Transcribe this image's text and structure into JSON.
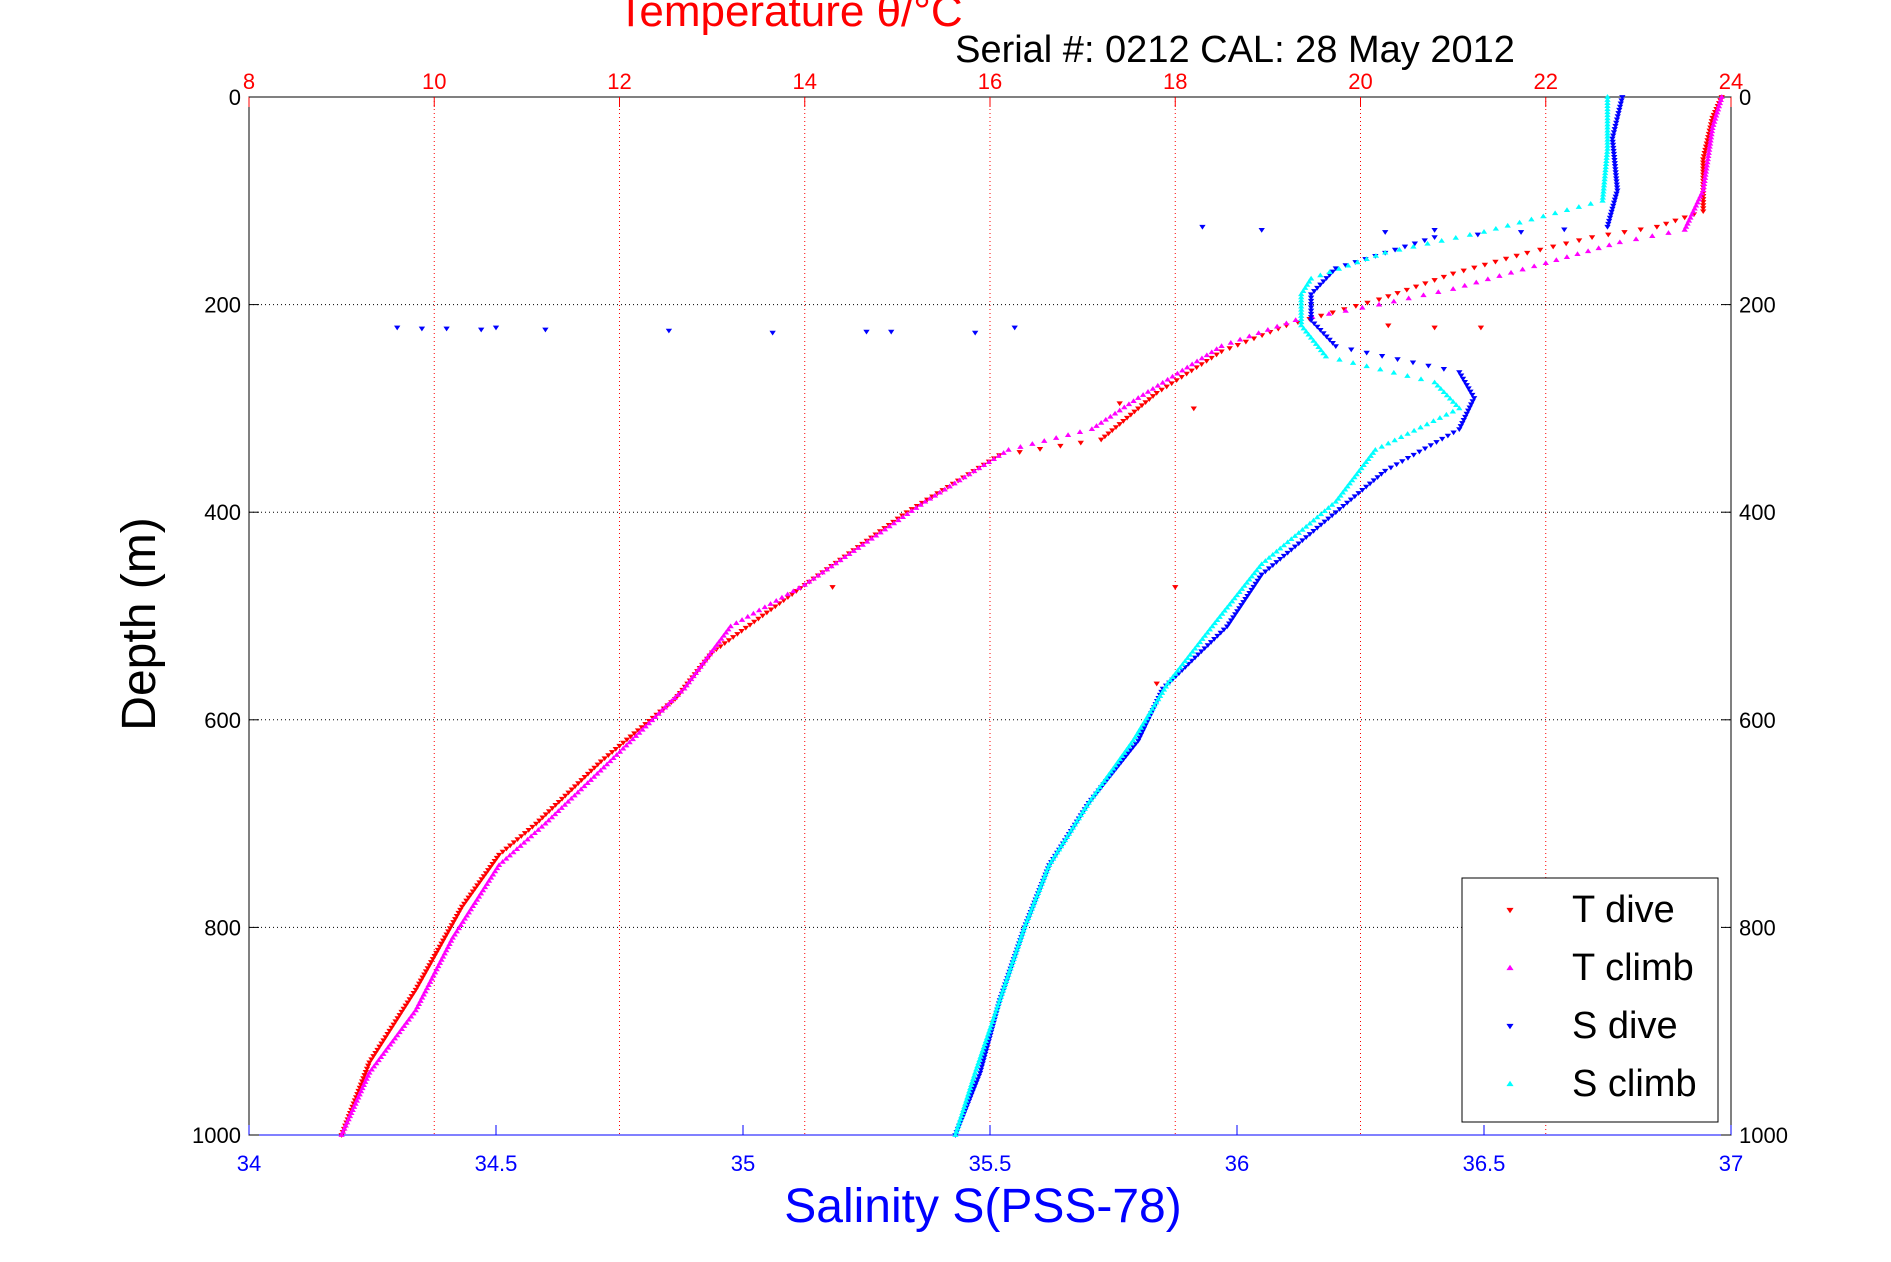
{
  "chart_data": {
    "type": "scatter",
    "title_temperature": "Temperature θ/°C",
    "title_serial": "Serial #: 0212  CAL: 28 May 2012",
    "xlabel": "Salinity S(PSS-78)",
    "ylabel": "Depth (m)",
    "temperature_axis": {
      "range": [
        8,
        24
      ],
      "ticks": [
        "8",
        "10",
        "12",
        "14",
        "16",
        "18",
        "20",
        "22",
        "24"
      ],
      "color": "#ff0000",
      "position": "top"
    },
    "salinity_axis": {
      "range": [
        34,
        37
      ],
      "ticks": [
        "34",
        "34.5",
        "35",
        "35.5",
        "36",
        "36.5",
        "37"
      ],
      "color": "#0000ff",
      "position": "bottom"
    },
    "depth_axis": {
      "range": [
        0,
        1000
      ],
      "reversed": true,
      "ticks": [
        "0",
        "200",
        "400",
        "600",
        "800",
        "1000"
      ]
    },
    "grid": true,
    "legend_position": "bottom-right",
    "series": [
      {
        "name": "T dive",
        "axis": "temperature",
        "color": "#ff0000",
        "marker": "triangle-down",
        "points": [
          [
            23.9,
            0
          ],
          [
            23.8,
            20
          ],
          [
            23.7,
            60
          ],
          [
            23.7,
            110
          ],
          [
            23.2,
            125
          ],
          [
            22.5,
            135
          ],
          [
            21.8,
            150
          ],
          [
            21.0,
            170
          ],
          [
            20.2,
            195
          ],
          [
            19.2,
            220
          ],
          [
            18.5,
            245
          ],
          [
            17.8,
            285
          ],
          [
            17.2,
            330
          ],
          [
            16.1,
            345
          ],
          [
            15.1,
            400
          ],
          [
            14.0,
            470
          ],
          [
            13.0,
            535
          ],
          [
            12.6,
            580
          ],
          [
            11.8,
            640
          ],
          [
            11.1,
            700
          ],
          [
            10.7,
            730
          ],
          [
            10.3,
            780
          ],
          [
            9.8,
            860
          ],
          [
            9.3,
            930
          ],
          [
            9.0,
            1000
          ]
        ]
      },
      {
        "name": "T climb",
        "axis": "temperature",
        "color": "#ff00ff",
        "marker": "triangle-up",
        "points": [
          [
            23.9,
            0
          ],
          [
            23.8,
            30
          ],
          [
            23.7,
            90
          ],
          [
            23.5,
            128
          ],
          [
            22.8,
            140
          ],
          [
            22.0,
            160
          ],
          [
            21.0,
            185
          ],
          [
            20.2,
            200
          ],
          [
            19.3,
            215
          ],
          [
            18.5,
            240
          ],
          [
            17.6,
            290
          ],
          [
            17.1,
            320
          ],
          [
            16.2,
            340
          ],
          [
            15.3,
            390
          ],
          [
            14.0,
            470
          ],
          [
            13.2,
            510
          ],
          [
            12.7,
            570
          ],
          [
            11.9,
            640
          ],
          [
            11.2,
            700
          ],
          [
            10.7,
            740
          ],
          [
            10.2,
            810
          ],
          [
            9.8,
            880
          ],
          [
            9.3,
            940
          ],
          [
            9.0,
            1000
          ]
        ]
      },
      {
        "name": "S dive",
        "axis": "salinity",
        "color": "#0000ff",
        "marker": "triangle-down",
        "points": [
          [
            36.78,
            0
          ],
          [
            36.76,
            40
          ],
          [
            36.77,
            90
          ],
          [
            36.75,
            125
          ],
          [
            36.4,
            135
          ],
          [
            36.2,
            165
          ],
          [
            36.15,
            190
          ],
          [
            36.15,
            215
          ],
          [
            36.2,
            240
          ],
          [
            36.45,
            265
          ],
          [
            36.48,
            290
          ],
          [
            36.45,
            320
          ],
          [
            36.3,
            360
          ],
          [
            36.2,
            400
          ],
          [
            36.05,
            460
          ],
          [
            35.98,
            510
          ],
          [
            35.85,
            570
          ],
          [
            35.8,
            620
          ],
          [
            35.7,
            680
          ],
          [
            35.62,
            740
          ],
          [
            35.57,
            800
          ],
          [
            35.52,
            870
          ],
          [
            35.48,
            940
          ],
          [
            35.43,
            1000
          ]
        ]
      },
      {
        "name": "S climb",
        "axis": "salinity",
        "color": "#00ffff",
        "marker": "triangle-up",
        "points": [
          [
            36.75,
            0
          ],
          [
            36.75,
            50
          ],
          [
            36.74,
            100
          ],
          [
            36.5,
            130
          ],
          [
            36.3,
            150
          ],
          [
            36.15,
            175
          ],
          [
            36.13,
            190
          ],
          [
            36.13,
            220
          ],
          [
            36.18,
            250
          ],
          [
            36.4,
            275
          ],
          [
            36.45,
            300
          ],
          [
            36.28,
            340
          ],
          [
            36.2,
            390
          ],
          [
            36.05,
            450
          ],
          [
            35.95,
            510
          ],
          [
            35.86,
            565
          ],
          [
            35.79,
            620
          ],
          [
            35.7,
            680
          ],
          [
            35.62,
            740
          ],
          [
            35.57,
            800
          ],
          [
            35.52,
            870
          ],
          [
            35.47,
            940
          ],
          [
            35.43,
            1000
          ]
        ]
      }
    ],
    "scattered_outliers": [
      {
        "series": "S dive",
        "points": [
          [
            34.3,
            222
          ],
          [
            34.35,
            223
          ],
          [
            34.4,
            223
          ],
          [
            34.47,
            224
          ],
          [
            34.5,
            222
          ],
          [
            34.6,
            224
          ],
          [
            34.85,
            225
          ],
          [
            35.06,
            227
          ],
          [
            35.25,
            226
          ],
          [
            35.3,
            226
          ],
          [
            35.47,
            227
          ],
          [
            35.55,
            222
          ],
          [
            35.93,
            125
          ],
          [
            36.05,
            128
          ],
          [
            36.3,
            130
          ],
          [
            36.4,
            128
          ]
        ]
      },
      {
        "series": "T dive",
        "points": [
          [
            17.4,
            295
          ],
          [
            18.2,
            300
          ],
          [
            20.3,
            220
          ],
          [
            20.8,
            222
          ],
          [
            21.3,
            222
          ],
          [
            14.3,
            472
          ],
          [
            18.0,
            472
          ],
          [
            17.8,
            565
          ]
        ]
      }
    ]
  },
  "legend": {
    "items": [
      {
        "label": "T dive",
        "color": "#ff0000",
        "marker": "triangle-down"
      },
      {
        "label": "T climb",
        "color": "#ff00ff",
        "marker": "triangle-up"
      },
      {
        "label": "S dive",
        "color": "#0000ff",
        "marker": "triangle-down"
      },
      {
        "label": "S climb",
        "color": "#00ffff",
        "marker": "triangle-up"
      }
    ]
  }
}
